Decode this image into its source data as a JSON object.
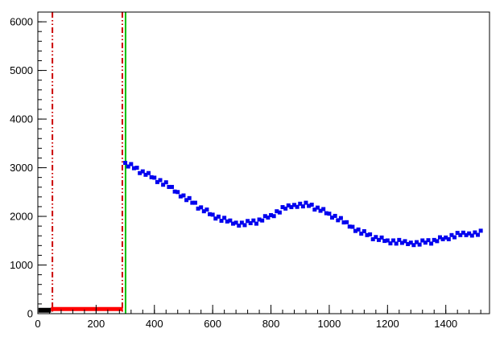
{
  "figure": {
    "background": "#ffffff",
    "frame_color": "#000000"
  },
  "chart_data": {
    "type": "scatter",
    "title": "",
    "xlabel": "",
    "ylabel": "",
    "xlim": [
      0,
      1550
    ],
    "ylim": [
      0,
      6200
    ],
    "x_ticks": [
      0,
      200,
      400,
      600,
      800,
      1000,
      1200,
      1400
    ],
    "x_minor_step": 40,
    "y_ticks": [
      0,
      1000,
      2000,
      3000,
      4000,
      5000,
      6000
    ],
    "y_minor_step": 200,
    "grid": false,
    "legend": null,
    "series": [
      {
        "name": "signal-band",
        "type": "scatter",
        "marker": "square",
        "marker_size": 5,
        "color": "#0000ee",
        "x": [
          300,
          310,
          320,
          330,
          340,
          350,
          360,
          370,
          380,
          390,
          400,
          410,
          420,
          430,
          440,
          450,
          460,
          470,
          480,
          490,
          500,
          510,
          520,
          530,
          540,
          550,
          560,
          570,
          580,
          590,
          600,
          610,
          620,
          630,
          640,
          650,
          660,
          670,
          680,
          690,
          700,
          710,
          720,
          730,
          740,
          750,
          760,
          770,
          780,
          790,
          800,
          810,
          820,
          830,
          840,
          850,
          860,
          870,
          880,
          890,
          900,
          910,
          920,
          930,
          940,
          950,
          960,
          970,
          980,
          990,
          1000,
          1010,
          1020,
          1030,
          1040,
          1050,
          1060,
          1070,
          1080,
          1090,
          1100,
          1110,
          1120,
          1130,
          1140,
          1150,
          1160,
          1170,
          1180,
          1190,
          1200,
          1210,
          1220,
          1230,
          1240,
          1250,
          1260,
          1270,
          1280,
          1290,
          1300,
          1310,
          1320,
          1330,
          1340,
          1350,
          1360,
          1370,
          1380,
          1390,
          1400,
          1410,
          1420,
          1430,
          1440,
          1450,
          1460,
          1470,
          1480,
          1490,
          1500,
          1510,
          1520
        ],
        "y": [
          3100,
          3025,
          3075,
          2990,
          3000,
          2890,
          2925,
          2855,
          2890,
          2805,
          2795,
          2705,
          2745,
          2650,
          2700,
          2605,
          2605,
          2510,
          2500,
          2410,
          2430,
          2335,
          2375,
          2280,
          2280,
          2160,
          2185,
          2105,
          2140,
          2045,
          2035,
          1955,
          1995,
          1910,
          1970,
          1895,
          1915,
          1850,
          1870,
          1810,
          1870,
          1820,
          1905,
          1860,
          1915,
          1850,
          1935,
          1915,
          2005,
          1975,
          2025,
          2005,
          2105,
          2080,
          2190,
          2160,
          2225,
          2190,
          2235,
          2195,
          2260,
          2205,
          2280,
          2215,
          2240,
          2140,
          2180,
          2115,
          2150,
          2065,
          2055,
          1975,
          2010,
          1920,
          1965,
          1875,
          1880,
          1790,
          1785,
          1700,
          1730,
          1645,
          1695,
          1615,
          1630,
          1530,
          1575,
          1515,
          1565,
          1495,
          1505,
          1445,
          1505,
          1440,
          1515,
          1455,
          1490,
          1430,
          1460,
          1410,
          1470,
          1420,
          1505,
          1460,
          1510,
          1440,
          1515,
          1490,
          1570,
          1530,
          1565,
          1530,
          1615,
          1570,
          1660,
          1615,
          1665,
          1615,
          1650,
          1605,
          1670,
          1620,
          1705
        ]
      },
      {
        "name": "baseline-black",
        "type": "line",
        "color": "#000000",
        "width": 6,
        "x": [
          2,
          45
        ],
        "y": [
          70,
          70
        ]
      },
      {
        "name": "baseline-red",
        "type": "line",
        "color": "#ff0000",
        "width": 5,
        "x": [
          45,
          292
        ],
        "y": [
          95,
          95
        ]
      }
    ],
    "vlines": [
      {
        "name": "vline-left",
        "x": 50,
        "color": "#cc0000",
        "style": "dashdot",
        "width": 2
      },
      {
        "name": "vline-mid",
        "x": 290,
        "color": "#cc0000",
        "style": "dashdot",
        "width": 2
      },
      {
        "name": "vline-green",
        "x": 301,
        "color": "#00bf00",
        "style": "solid",
        "width": 2
      }
    ]
  }
}
